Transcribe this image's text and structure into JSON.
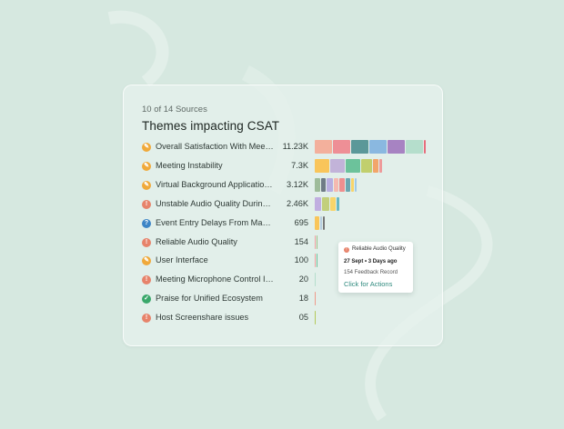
{
  "card": {
    "subtitle": "10 of 14 Sources",
    "title": "Themes impacting CSAT"
  },
  "rows": [
    {
      "label": "Overall Satisfaction With Meeti...",
      "value": "11.23K",
      "icon": "lightbulb-icon",
      "icon_color": "#f0a93a",
      "segments": [
        {
          "w": 19,
          "c": "#f3b09c"
        },
        {
          "w": 19,
          "c": "#ee8f96"
        },
        {
          "w": 19,
          "c": "#5b9899"
        },
        {
          "w": 19,
          "c": "#8ab8e0"
        },
        {
          "w": 19,
          "c": "#a783c2"
        },
        {
          "w": 19,
          "c": "#b5decc"
        },
        {
          "w": 2,
          "c": "#e76d7c"
        }
      ]
    },
    {
      "label": "Meeting Instability",
      "value": "7.3K",
      "icon": "lightbulb-icon",
      "icon_color": "#f0a93a",
      "segments": [
        {
          "w": 16,
          "c": "#f9c55a"
        },
        {
          "w": 16,
          "c": "#c2b3d9"
        },
        {
          "w": 16,
          "c": "#6cc29b"
        },
        {
          "w": 12,
          "c": "#c1cf6d"
        },
        {
          "w": 6,
          "c": "#f2a56a"
        },
        {
          "w": 3,
          "c": "#ee9a9a"
        }
      ]
    },
    {
      "label": "Virtual Background Application...",
      "value": "3.12K",
      "icon": "lightbulb-icon",
      "icon_color": "#f0a93a",
      "segments": [
        {
          "w": 6,
          "c": "#9ebc9a"
        },
        {
          "w": 5,
          "c": "#6f7c86"
        },
        {
          "w": 7,
          "c": "#b8aee0"
        },
        {
          "w": 5,
          "c": "#f5b9b0"
        },
        {
          "w": 6,
          "c": "#ef8f8f"
        },
        {
          "w": 5,
          "c": "#6ca6b0"
        },
        {
          "w": 3,
          "c": "#f8d56a"
        },
        {
          "w": 2,
          "c": "#9fc9e6"
        }
      ]
    },
    {
      "label": "Unstable Audio Quality During...",
      "value": "2.46K",
      "icon": "alert-icon",
      "icon_color": "#e7836b",
      "segments": [
        {
          "w": 7,
          "c": "#c0aee0"
        },
        {
          "w": 8,
          "c": "#c2cf7b"
        },
        {
          "w": 6,
          "c": "#f8d56a"
        },
        {
          "w": 3,
          "c": "#67b7c2"
        }
      ]
    },
    {
      "label": "Event Entry Delays From Mand...",
      "value": "695",
      "icon": "question-icon",
      "icon_color": "#3d85c6",
      "segments": [
        {
          "w": 5,
          "c": "#f9c55a"
        },
        {
          "w": 2,
          "c": "#b7cde0"
        },
        {
          "w": 2,
          "c": "#777"
        }
      ]
    },
    {
      "label": "Reliable Audio Quality",
      "value": "154",
      "icon": "alert-icon",
      "icon_color": "#e7836b",
      "segments": [
        {
          "w": 1,
          "c": "#f0a0a0"
        },
        {
          "w": 1,
          "c": "#9cc28a"
        }
      ]
    },
    {
      "label": "User Interface",
      "value": "100",
      "icon": "lightbulb-icon",
      "icon_color": "#f0a93a",
      "segments": [
        {
          "w": 1,
          "c": "#f0a0a0"
        },
        {
          "w": 1,
          "c": "#6cc29b"
        }
      ]
    },
    {
      "label": "Meeting Microphone Control Is...",
      "value": "20",
      "icon": "alert-icon",
      "icon_color": "#e7836b",
      "segments": [
        {
          "w": 1,
          "c": "#b5decc"
        }
      ]
    },
    {
      "label": "Praise for Unified Ecosystem",
      "value": "18",
      "icon": "check-icon",
      "icon_color": "#3aa86b",
      "segments": [
        {
          "w": 1,
          "c": "#ef9a8a"
        }
      ]
    },
    {
      "label": "Host Screenshare issues",
      "value": "05",
      "icon": "alert-icon",
      "icon_color": "#e7836b",
      "segments": [
        {
          "w": 1,
          "c": "#b4c95a"
        }
      ]
    }
  ],
  "tooltip": {
    "theme": "Reliable Audio Quality",
    "date": "27 Sept • 3 Days ago",
    "records": "154 Feedback Record",
    "action": "Click for Actions"
  }
}
